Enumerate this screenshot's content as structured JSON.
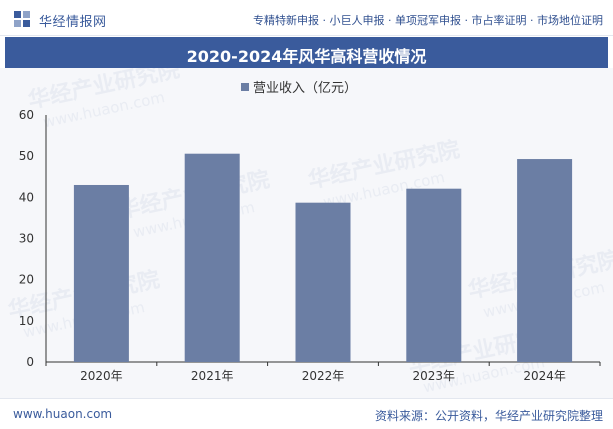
{
  "header": {
    "brand": "华经情报网",
    "tags": "专精特新申报 · 小巨人申报 · 单项冠军申报 · 市占率证明 · 市场地位证明",
    "logo_icon": "huajing-logo-icon"
  },
  "colors": {
    "brand": "#3a5b9c",
    "bar": "#6b7ea4",
    "background": "#f6f7fa"
  },
  "chart_data": {
    "type": "bar",
    "title": "2020-2024年风华高科营收情况",
    "categories": [
      "2020年",
      "2021年",
      "2022年",
      "2023年",
      "2024年"
    ],
    "series": [
      {
        "name": "营业收入（亿元）",
        "values": [
          43.0,
          50.6,
          38.7,
          42.1,
          49.3
        ]
      }
    ],
    "xlabel": "",
    "ylabel": "",
    "ylim": [
      0,
      60
    ],
    "yticks": [
      "0",
      "10",
      "20",
      "30",
      "40",
      "50",
      "60"
    ],
    "legend": "top-center",
    "grid": false
  },
  "watermarks": [
    "华经产业研究院",
    "www.huaon.com"
  ],
  "footer": {
    "site": "www.huaon.com",
    "source": "资料来源：公开资料，华经产业研究院整理"
  }
}
